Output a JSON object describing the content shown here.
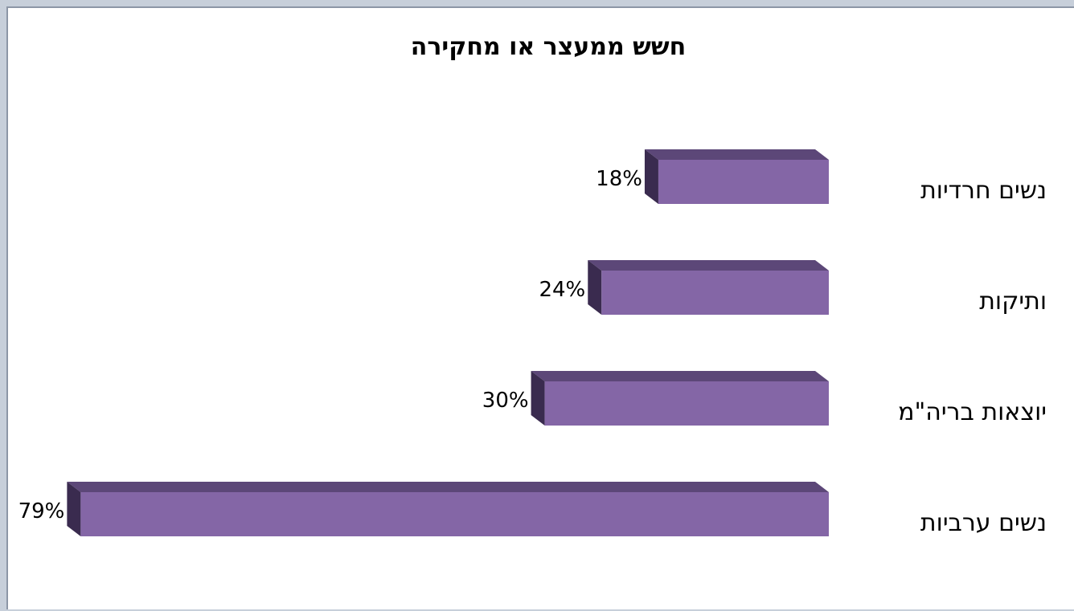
{
  "chart_data": {
    "type": "bar",
    "orientation": "horizontal",
    "direction": "rtl",
    "title": "חשש ממעצר או מחקירה",
    "categories": [
      "נשים חרדיות",
      "ותיקות",
      "יוצאות בריה\"מ",
      "נשים ערביות"
    ],
    "values": [
      18,
      24,
      30,
      79
    ],
    "value_labels": [
      "18%",
      "24%",
      "30%",
      "79%"
    ],
    "unit": "%",
    "xlim": [
      0,
      80
    ],
    "grid": false,
    "legend": "none",
    "three_d": true,
    "colors": {
      "bar_front": "#8466a6",
      "bar_top": "#5c4778",
      "bar_side": "#3a2b4f"
    }
  }
}
